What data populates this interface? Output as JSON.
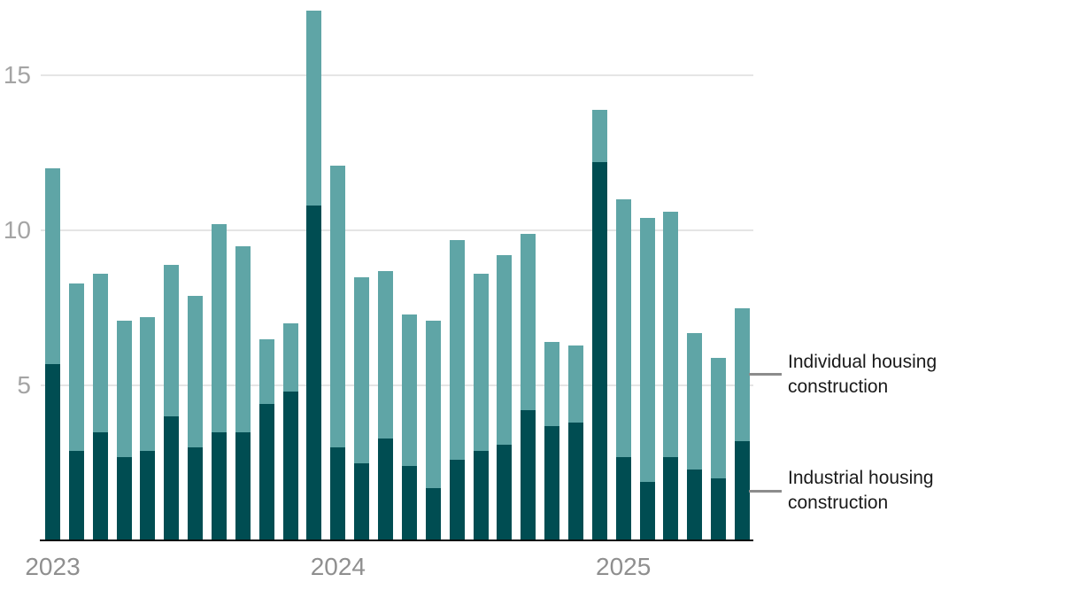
{
  "chart_data": {
    "type": "bar",
    "stacked": true,
    "title": "",
    "xlabel": "",
    "ylabel": "",
    "grid": "horizontal",
    "ylim": [
      0,
      17.2
    ],
    "yticks": [
      {
        "value": 15,
        "label": "15"
      },
      {
        "value": 10,
        "label": "10"
      },
      {
        "value": 5,
        "label": "5"
      }
    ],
    "categories": [
      "2023-01",
      "2023-02",
      "2023-03",
      "2023-04",
      "2023-05",
      "2023-06",
      "2023-07",
      "2023-08",
      "2023-09",
      "2023-10",
      "2023-11",
      "2023-12",
      "2024-01",
      "2024-02",
      "2024-03",
      "2024-04",
      "2024-05",
      "2024-06",
      "2024-07",
      "2024-08",
      "2024-09",
      "2024-10",
      "2024-11",
      "2024-12",
      "2025-01",
      "2025-02",
      "2025-03",
      "2025-04",
      "2025-05",
      "2025-06"
    ],
    "series": [
      {
        "name": "Industrial housing construction",
        "stack_position": "bottom",
        "color": "#004d52",
        "values": [
          5.7,
          2.9,
          3.5,
          2.7,
          2.9,
          4.0,
          3.0,
          3.5,
          3.5,
          4.4,
          4.8,
          10.8,
          3.0,
          2.5,
          3.3,
          2.4,
          1.7,
          2.6,
          2.9,
          3.1,
          4.2,
          3.7,
          3.8,
          12.2,
          2.7,
          1.9,
          2.7,
          2.3,
          2.0,
          3.2
        ]
      },
      {
        "name": "Individual housing construction",
        "stack_position": "top",
        "color": "#5fa5a6",
        "values": [
          6.3,
          5.4,
          5.1,
          4.4,
          4.3,
          4.9,
          4.9,
          6.7,
          6.0,
          2.1,
          2.2,
          6.3,
          9.1,
          6.0,
          5.4,
          4.9,
          5.4,
          7.1,
          5.7,
          6.1,
          5.7,
          2.7,
          2.5,
          1.7,
          8.3,
          8.5,
          7.9,
          4.4,
          3.9,
          4.3
        ]
      }
    ],
    "stack_totals": [
      12.0,
      8.3,
      8.6,
      7.1,
      7.2,
      8.9,
      7.9,
      10.2,
      9.5,
      6.5,
      7.0,
      17.1,
      12.1,
      8.5,
      8.7,
      7.3,
      7.1,
      9.7,
      8.6,
      9.2,
      9.9,
      6.4,
      6.3,
      13.9,
      11.0,
      10.4,
      10.6,
      6.7,
      5.9,
      7.5
    ],
    "x_year_labels": [
      {
        "label": "2023",
        "month_index": 0
      },
      {
        "label": "2024",
        "month_index": 12
      },
      {
        "label": "2025",
        "month_index": 24
      }
    ],
    "legend": {
      "position": "right",
      "items": [
        {
          "label": "Individual housing construction",
          "series_index": 1
        },
        {
          "label": "Industrial housing construction",
          "series_index": 0
        }
      ]
    }
  }
}
